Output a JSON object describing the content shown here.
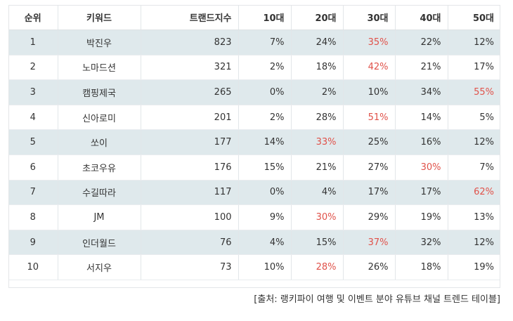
{
  "table": {
    "headers": [
      "순위",
      "키워드",
      "트랜드지수",
      "10대",
      "20대",
      "30대",
      "40대",
      "50대"
    ],
    "rows": [
      {
        "rank": "1",
        "keyword": "박진우",
        "index": "823",
        "a10": "7%",
        "a20": "24%",
        "a30": "35%",
        "a40": "22%",
        "a50": "12%",
        "highlight": "a30"
      },
      {
        "rank": "2",
        "keyword": "노마드션",
        "index": "321",
        "a10": "2%",
        "a20": "18%",
        "a30": "42%",
        "a40": "21%",
        "a50": "17%",
        "highlight": "a30"
      },
      {
        "rank": "3",
        "keyword": "캠핑제국",
        "index": "265",
        "a10": "0%",
        "a20": "2%",
        "a30": "10%",
        "a40": "34%",
        "a50": "55%",
        "highlight": "a50"
      },
      {
        "rank": "4",
        "keyword": "신아로미",
        "index": "201",
        "a10": "2%",
        "a20": "28%",
        "a30": "51%",
        "a40": "14%",
        "a50": "5%",
        "highlight": "a30"
      },
      {
        "rank": "5",
        "keyword": "쏘이",
        "index": "177",
        "a10": "14%",
        "a20": "33%",
        "a30": "25%",
        "a40": "16%",
        "a50": "12%",
        "highlight": "a20"
      },
      {
        "rank": "6",
        "keyword": "초코우유",
        "index": "176",
        "a10": "15%",
        "a20": "21%",
        "a30": "27%",
        "a40": "30%",
        "a50": "7%",
        "highlight": "a40"
      },
      {
        "rank": "7",
        "keyword": "수길따라",
        "index": "117",
        "a10": "0%",
        "a20": "4%",
        "a30": "17%",
        "a40": "17%",
        "a50": "62%",
        "highlight": "a50"
      },
      {
        "rank": "8",
        "keyword": "JM",
        "index": "100",
        "a10": "9%",
        "a20": "30%",
        "a30": "29%",
        "a40": "19%",
        "a50": "13%",
        "highlight": "a20"
      },
      {
        "rank": "9",
        "keyword": "인더월드",
        "index": "76",
        "a10": "4%",
        "a20": "15%",
        "a30": "37%",
        "a40": "32%",
        "a50": "12%",
        "highlight": "a30"
      },
      {
        "rank": "10",
        "keyword": "서지우",
        "index": "73",
        "a10": "10%",
        "a20": "28%",
        "a30": "26%",
        "a40": "18%",
        "a50": "19%",
        "highlight": "a20"
      }
    ]
  },
  "source": "[출처: 랭키파이 여행 및 이벤트 분야 유튜브 채널 트렌드 테이블]",
  "colors": {
    "highlight": "#e0524a",
    "stripe": "#dfe9ec"
  }
}
